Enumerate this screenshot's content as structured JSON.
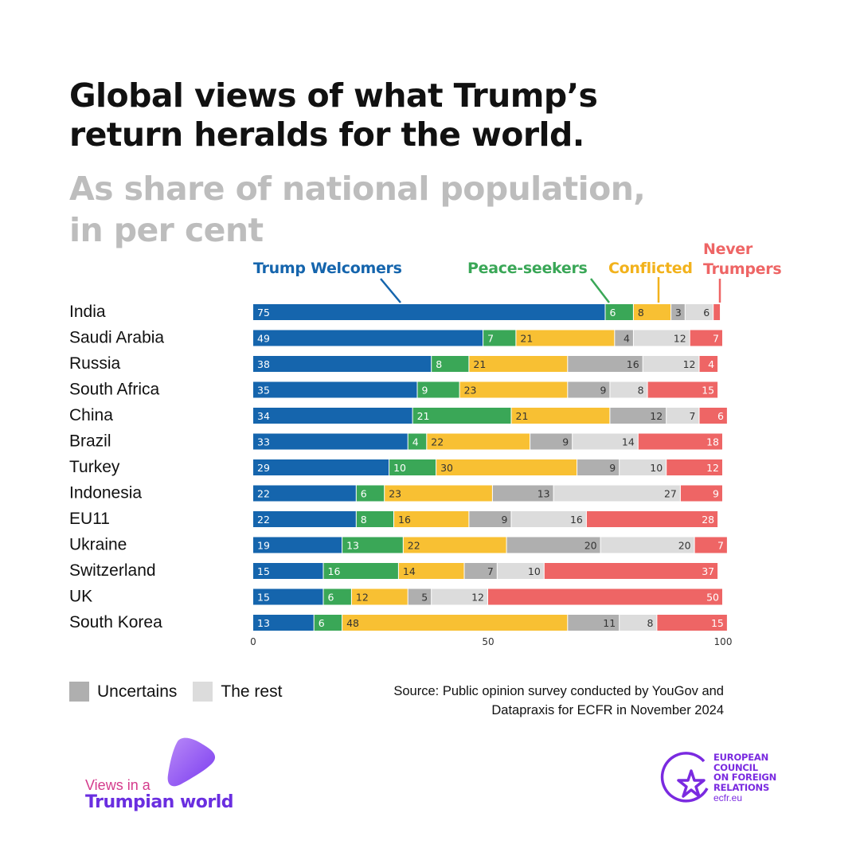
{
  "title": "Global views of what Trump’s\nreturn heralds for the world.",
  "subtitle": "As share of national population,\nin per cent",
  "colors": {
    "Trump Welcomers": "#1565ad",
    "Peace-seekers": "#3aa757",
    "Conflicted": "#f8c033",
    "Uncertains": "#afafaf",
    "The rest": "#dcdcdc",
    "Never Trumpers": "#ee6565"
  },
  "chart_data": {
    "type": "bar",
    "orientation": "horizontal",
    "stacked": true,
    "categories": [
      "India",
      "Saudi Arabia",
      "Russia",
      "South Africa",
      "China",
      "Brazil",
      "Turkey",
      "Indonesia",
      "EU11",
      "Ukraine",
      "Switzerland",
      "UK",
      "South Korea"
    ],
    "series": [
      {
        "name": "Trump Welcomers",
        "values": [
          75,
          49,
          38,
          35,
          34,
          33,
          29,
          22,
          22,
          19,
          15,
          15,
          13
        ]
      },
      {
        "name": "Peace-seekers",
        "values": [
          6,
          7,
          8,
          9,
          21,
          4,
          10,
          6,
          8,
          13,
          16,
          6,
          6
        ]
      },
      {
        "name": "Conflicted",
        "values": [
          8,
          21,
          21,
          23,
          21,
          22,
          30,
          23,
          16,
          22,
          14,
          12,
          48
        ]
      },
      {
        "name": "Uncertains",
        "values": [
          3,
          4,
          16,
          9,
          12,
          9,
          9,
          13,
          9,
          20,
          7,
          5,
          11
        ]
      },
      {
        "name": "The rest",
        "values": [
          6,
          12,
          12,
          8,
          7,
          14,
          10,
          27,
          16,
          20,
          10,
          12,
          8
        ]
      },
      {
        "name": "Never Trumpers",
        "values": [
          1.5,
          7,
          4,
          15,
          6,
          18,
          12,
          9,
          28,
          7,
          37,
          50,
          15
        ]
      }
    ],
    "labels": [
      [
        "75",
        "6",
        "8",
        "3",
        "6",
        ""
      ],
      [
        "49",
        "7",
        "21",
        "4",
        "12",
        "7"
      ],
      [
        "38",
        "8",
        "21",
        "16",
        "12",
        "4"
      ],
      [
        "35",
        "9",
        "23",
        "9",
        "8",
        "15"
      ],
      [
        "34",
        "21",
        "21",
        "12",
        "7",
        "6"
      ],
      [
        "33",
        "4",
        "22",
        "9",
        "14",
        "18"
      ],
      [
        "29",
        "10",
        "30",
        "9",
        "10",
        "12"
      ],
      [
        "22",
        "6",
        "23",
        "13",
        "27",
        "9"
      ],
      [
        "22",
        "8",
        "16",
        "9",
        "16",
        "28"
      ],
      [
        "19",
        "13",
        "22",
        "20",
        "20",
        "7"
      ],
      [
        "15",
        "16",
        "14",
        "7",
        "10",
        "37"
      ],
      [
        "15",
        "6",
        "12",
        "5",
        "12",
        "50"
      ],
      [
        "13",
        "6",
        "48",
        "11",
        "8",
        "15"
      ]
    ],
    "xlim": [
      0,
      100
    ],
    "xticks": [
      "0",
      "50",
      "100"
    ]
  },
  "series_labels": {
    "welcomers": "Trump Welcomers",
    "peace": "Peace-seekers",
    "conflicted": "Conflicted",
    "never": "Never\nTrumpers"
  },
  "legend": [
    {
      "label": "Uncertains"
    },
    {
      "label": "The rest"
    }
  ],
  "source": "Source: Public opinion survey conducted by YouGov and\nDatapraxis for ECFR in November 2024",
  "brand": {
    "line1": "Views in a",
    "line2": "Trumpian world"
  },
  "ecfr": {
    "name": "EUROPEAN\nCOUNCIL\nON FOREIGN\nRELATIONS",
    "url": "ecfr.eu"
  }
}
